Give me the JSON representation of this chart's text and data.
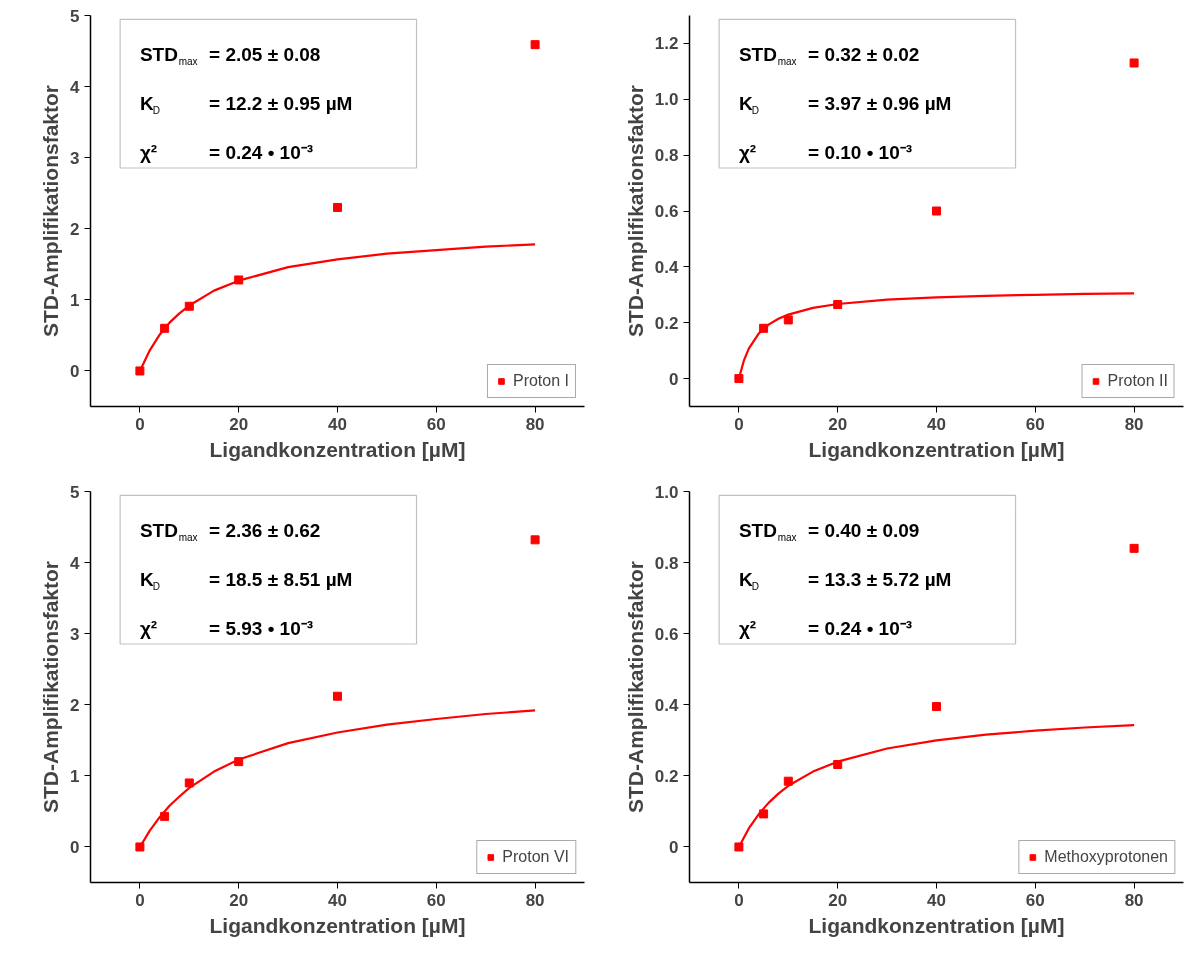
{
  "chart_data": [
    {
      "type": "scatter",
      "xlabel": "Ligandkonzentration [µM]",
      "ylabel": "STD-Amplifikationsfaktor",
      "xlim": [
        -10,
        90
      ],
      "xticks": [
        0,
        20,
        40,
        60,
        80
      ],
      "ylim": [
        -0.5,
        5
      ],
      "yticks": [
        0,
        1,
        2,
        3,
        4,
        5
      ],
      "grid": false,
      "legend": "bottom right",
      "annotations": [
        "STD$_{max}$= 2.05 ± 0.08",
        "K$_{D}$ = 12.2 ± 0.95 µM",
        "χ² = 0.24 • 10⁻³"
      ],
      "series": [
        {
          "name": "Proton I",
          "marker": "square",
          "color": "#ff0000",
          "x": [
            0,
            5,
            10,
            20,
            40,
            80
          ],
          "values": [
            0,
            0.6,
            0.91,
            1.28,
            2.3,
            4.59
          ]
        },
        {
          "type": "line",
          "color": "#ff0000",
          "x": [
            0,
            2,
            4,
            6,
            8,
            10,
            15,
            20,
            30,
            40,
            50,
            60,
            70,
            80
          ],
          "values": [
            0,
            0.29,
            0.51,
            0.68,
            0.81,
            0.92,
            1.13,
            1.27,
            1.46,
            1.57,
            1.65,
            1.7,
            1.75,
            1.78
          ]
        }
      ]
    },
    {
      "type": "scatter",
      "xlabel": "Ligandkonzentration [µM]",
      "ylabel": "STD-Amplifikationsfaktor",
      "xlim": [
        -10,
        90
      ],
      "xticks": [
        0,
        20,
        40,
        60,
        80
      ],
      "ylim": [
        -0.1,
        1.3
      ],
      "yticks": [
        0,
        0.2,
        0.4,
        0.6,
        0.8,
        {
          "value": 1,
          "label": "1.0"
        },
        1.2
      ],
      "grid": false,
      "legend": "bottom right",
      "annotations": [
        "STD$_{max}$= 0.32 ± 0.02",
        "K$_{D}$ = 3.97 ± 0.96 µM",
        "χ² = 0.10 • 10⁻³"
      ],
      "series": [
        {
          "name": "Proton II",
          "marker": "square",
          "color": "#ff0000",
          "x": [
            0,
            5,
            10,
            20,
            40,
            80
          ],
          "values": [
            0,
            0.18,
            0.21,
            0.265,
            0.6,
            1.13
          ]
        },
        {
          "type": "line",
          "color": "#ff0000",
          "x": [
            0,
            1,
            2,
            4,
            6,
            8,
            10,
            15,
            20,
            30,
            40,
            50,
            60,
            70,
            80
          ],
          "values": [
            0,
            0.064,
            0.107,
            0.161,
            0.193,
            0.214,
            0.229,
            0.253,
            0.267,
            0.283,
            0.291,
            0.296,
            0.3,
            0.303,
            0.305
          ]
        }
      ]
    },
    {
      "type": "scatter",
      "xlabel": "Ligandkonzentration [µM]",
      "ylabel": "STD-Amplifikationsfaktor",
      "xlim": [
        -10,
        90
      ],
      "xticks": [
        0,
        20,
        40,
        60,
        80
      ],
      "ylim": [
        -0.5,
        5
      ],
      "yticks": [
        0,
        1,
        2,
        3,
        4,
        5
      ],
      "grid": false,
      "legend": "bottom right",
      "annotations": [
        "STD$_{max}$= 2.36 ± 0.62",
        "K$_{D}$ = 18.5 ± 8.51 µM",
        "χ² = 5.93 • 10⁻³"
      ],
      "series": [
        {
          "name": "Proton VI",
          "marker": "square",
          "color": "#ff0000",
          "x": [
            0,
            5,
            10,
            20,
            40,
            80
          ],
          "values": [
            0,
            0.43,
            0.9,
            1.2,
            2.12,
            4.32
          ]
        },
        {
          "type": "line",
          "color": "#ff0000",
          "x": [
            0,
            2,
            4,
            6,
            8,
            10,
            15,
            20,
            30,
            40,
            50,
            60,
            70,
            80
          ],
          "values": [
            0,
            0.23,
            0.42,
            0.58,
            0.71,
            0.83,
            1.06,
            1.23,
            1.46,
            1.61,
            1.72,
            1.8,
            1.87,
            1.92
          ]
        }
      ]
    },
    {
      "type": "scatter",
      "xlabel": "Ligandkonzentration [µM]",
      "ylabel": "STD-Amplifikationsfaktor",
      "xlim": [
        -10,
        90
      ],
      "xticks": [
        0,
        20,
        40,
        60,
        80
      ],
      "ylim": [
        -0.1,
        1
      ],
      "yticks": [
        0,
        0.2,
        0.4,
        0.6,
        0.8,
        {
          "value": 1,
          "label": "1.0"
        }
      ],
      "grid": false,
      "legend": "bottom right",
      "annotations": [
        "STD$_{max}$= 0.40 ± 0.09",
        "K$_{D}$ = 13.3 ± 5.72 µM",
        "χ² = 0.24 • 10⁻³"
      ],
      "series": [
        {
          "name": "Methoxyprotonen",
          "marker": "square",
          "color": "#ff0000",
          "x": [
            0,
            5,
            10,
            20,
            40,
            80
          ],
          "values": [
            0,
            0.093,
            0.185,
            0.232,
            0.395,
            0.84
          ]
        },
        {
          "type": "line",
          "color": "#ff0000",
          "x": [
            0,
            2,
            4,
            6,
            8,
            10,
            15,
            20,
            30,
            40,
            50,
            60,
            70,
            80
          ],
          "values": [
            0,
            0.052,
            0.092,
            0.124,
            0.15,
            0.172,
            0.212,
            0.24,
            0.277,
            0.3,
            0.316,
            0.327,
            0.336,
            0.343
          ]
        }
      ]
    }
  ]
}
